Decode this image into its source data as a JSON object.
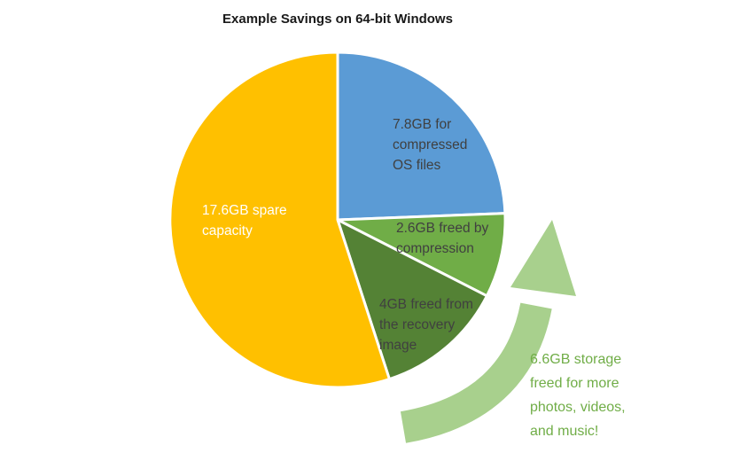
{
  "title": "Example Savings on 64-bit Windows",
  "chart_data": {
    "type": "pie",
    "title": "Example Savings on 64-bit Windows",
    "units": "GB",
    "start_angle_deg": 0,
    "direction": "clockwise",
    "legend_position": "none",
    "slices": [
      {
        "name": "compressed-os-files",
        "value": 7.8,
        "label": "7.8GB for compressed OS files",
        "lines": [
          "7.8GB for",
          "compressed",
          "OS files"
        ],
        "color": "#5B9BD5",
        "text_color": "#404040"
      },
      {
        "name": "freed-by-compression",
        "value": 2.6,
        "label": "2.6GB freed by compression",
        "lines": [
          "2.6GB freed by",
          "compression"
        ],
        "color": "#70AD47",
        "text_color": "#404040"
      },
      {
        "name": "freed-from-recovery-image",
        "value": 4,
        "label": "4GB freed from the recovery image",
        "lines": [
          "4GB freed from",
          "the recovery",
          "image"
        ],
        "color": "#548235",
        "text_color": "#404040"
      },
      {
        "name": "spare-capacity",
        "value": 17.6,
        "label": "17.6GB spare capacity",
        "lines": [
          "17.6GB spare",
          "capacity"
        ],
        "color": "#FFC000",
        "text_color": "#FFFFFF"
      }
    ],
    "annotation": {
      "text": "6.6GB storage freed for more photos, videos, and music!",
      "lines": [
        "6.6GB storage",
        "freed for more",
        "photos, videos,",
        "and music!"
      ],
      "color": "#70AD47",
      "arrow_color": "#A8D08D"
    },
    "slice_border_color": "#FFFFFF"
  }
}
